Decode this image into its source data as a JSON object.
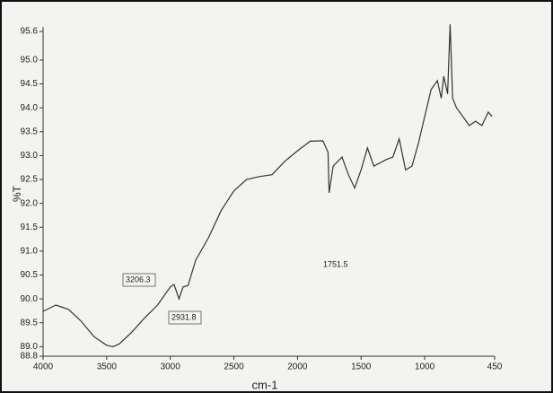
{
  "chart_data": {
    "type": "line",
    "ylabel": "%T",
    "xlabel": "cm-1",
    "annotations": [
      "3206.3",
      "2931.8",
      "1751.5"
    ],
    "xlim": [
      4000,
      450
    ],
    "xticks": [
      4000,
      3500,
      3000,
      2500,
      2000,
      1500,
      1000,
      450
    ],
    "ylim": [
      88.8,
      95.6
    ],
    "yticks": [
      88.8,
      {
        "value": 89,
        "label": "89.0"
      },
      89.5,
      {
        "value": 90,
        "label": "90.0"
      },
      90.5,
      {
        "value": 91,
        "label": "91.0"
      },
      91.5,
      {
        "value": 92,
        "label": "92.0"
      },
      92.5,
      {
        "value": 93,
        "label": "93.0"
      },
      93.5,
      {
        "value": 94,
        "label": "94.0"
      },
      94.5,
      {
        "value": 95,
        "label": "95.0"
      },
      95.6
    ],
    "series": [
      {
        "color": "#333333",
        "x": [
          4000,
          3900,
          3800,
          3700,
          3600,
          3500,
          3450,
          3400,
          3300,
          3206,
          3100,
          3000,
          2970,
          2931.8,
          2900,
          2860,
          2800,
          2700,
          2600,
          2500,
          2400,
          2300,
          2200,
          2100,
          2000,
          1900,
          1800,
          1760,
          1751.5,
          1720,
          1650,
          1600,
          1550,
          1500,
          1450,
          1400,
          1300,
          1250,
          1200,
          1150,
          1100,
          1050,
          1000,
          950,
          900,
          870,
          850,
          820,
          800,
          780,
          750,
          700,
          650,
          600,
          550,
          500,
          470
        ],
        "values": [
          89.74,
          89.87,
          89.78,
          89.53,
          89.21,
          89.03,
          89.0,
          89.06,
          89.31,
          89.59,
          89.87,
          90.25,
          90.3,
          90.0,
          90.25,
          90.28,
          90.81,
          91.28,
          91.85,
          92.26,
          92.5,
          92.56,
          92.6,
          92.88,
          93.1,
          93.3,
          93.31,
          93.07,
          92.22,
          92.78,
          92.97,
          92.6,
          92.32,
          92.7,
          93.16,
          92.78,
          92.92,
          92.97,
          93.35,
          92.7,
          92.78,
          93.25,
          93.82,
          94.38,
          94.57,
          94.2,
          94.66,
          94.29,
          95.75,
          94.2,
          94.0,
          93.82,
          93.63,
          93.72,
          93.63,
          93.91,
          93.82
        ]
      }
    ]
  }
}
